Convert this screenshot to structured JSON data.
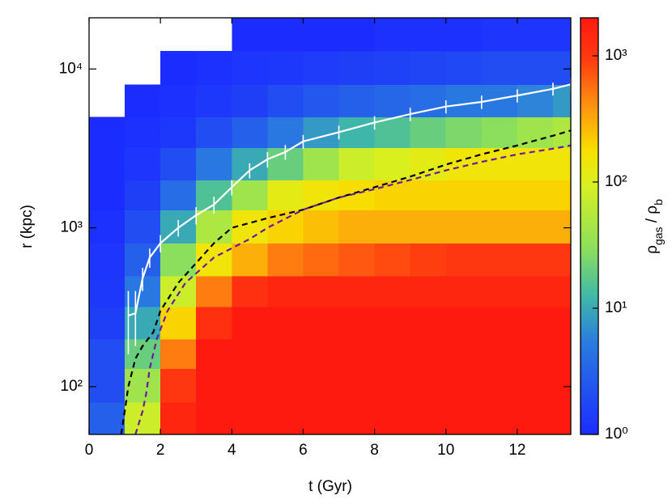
{
  "chart_data": {
    "type": "heatmap",
    "xlabel": "t (Gyr)",
    "ylabel": "r (kpc)",
    "colorbar_label": [
      "ρ",
      "gas",
      " / ρ",
      "b"
    ],
    "xlim": [
      0,
      13.5
    ],
    "ylim": [
      50,
      21000
    ],
    "yscale": "log",
    "xticks": [
      0,
      2,
      4,
      6,
      8,
      10,
      12
    ],
    "yticks": [
      {
        "value": 100,
        "label": "10²"
      },
      {
        "value": 1000,
        "label": "10³"
      },
      {
        "value": 10000,
        "label": "10⁴"
      }
    ],
    "clim": [
      1,
      2000
    ],
    "cticks": [
      {
        "value": 1,
        "label": "10⁰"
      },
      {
        "value": 10,
        "label": "10¹"
      },
      {
        "value": 100,
        "label": "10²"
      },
      {
        "value": 1000,
        "label": "10³"
      }
    ],
    "colormap": [
      [
        0,
        "#1b2cff"
      ],
      [
        0.22,
        "#2a7be0"
      ],
      [
        0.33,
        "#3fb8a8"
      ],
      [
        0.45,
        "#8ee05a"
      ],
      [
        0.6,
        "#d8f020"
      ],
      [
        0.68,
        "#f8e000"
      ],
      [
        0.8,
        "#ff8a10"
      ],
      [
        0.9,
        "#ff3a10"
      ],
      [
        1,
        "#ff1a10"
      ]
    ],
    "t_edges": [
      0,
      1,
      2,
      3,
      4,
      5,
      6,
      7,
      8,
      9,
      10,
      11,
      12,
      13,
      13.5
    ],
    "r_edges": [
      50,
      80,
      130,
      200,
      320,
      500,
      800,
      1300,
      2000,
      3200,
      5000,
      8000,
      13000,
      21000
    ],
    "z": [
      [
        3,
        80,
        1500,
        2000,
        2000,
        2000,
        2000,
        2000,
        2000,
        2000,
        2000,
        2000,
        2000,
        2000
      ],
      [
        2,
        40,
        1000,
        2000,
        2000,
        2000,
        2000,
        2000,
        2000,
        2000,
        2000,
        2000,
        2000,
        2000
      ],
      [
        2,
        20,
        500,
        2000,
        2000,
        2000,
        2000,
        2000,
        2000,
        2000,
        2000,
        2000,
        2000,
        2000
      ],
      [
        1.5,
        10,
        200,
        1200,
        2000,
        2000,
        2000,
        2000,
        2000,
        2000,
        2000,
        2000,
        2000,
        2000
      ],
      [
        1.3,
        5,
        80,
        500,
        1200,
        1500,
        1500,
        1500,
        1500,
        1500,
        1500,
        1500,
        1500,
        1500
      ],
      [
        1.2,
        3,
        30,
        150,
        300,
        500,
        600,
        700,
        800,
        900,
        1000,
        1000,
        1000,
        1000
      ],
      [
        1.1,
        2,
        10,
        50,
        150,
        200,
        250,
        300,
        300,
        300,
        300,
        300,
        300,
        300
      ],
      [
        1,
        1.5,
        4,
        15,
        40,
        120,
        150,
        180,
        200,
        200,
        200,
        200,
        200,
        200
      ],
      [
        1,
        1.2,
        2,
        5,
        10,
        20,
        40,
        80,
        100,
        120,
        150,
        150,
        150,
        150
      ],
      [
        1,
        1.1,
        1.3,
        2,
        3,
        5,
        8,
        12,
        15,
        20,
        25,
        30,
        40,
        50
      ],
      [
        null,
        1,
        1.1,
        1.3,
        1.5,
        2,
        2.5,
        3,
        3.5,
        4,
        5,
        5,
        6,
        8
      ],
      [
        null,
        null,
        1,
        1.1,
        1.2,
        1.3,
        1.4,
        1.5,
        1.6,
        1.7,
        1.8,
        2,
        2,
        2
      ],
      [
        null,
        null,
        null,
        null,
        1,
        1,
        1,
        1,
        1.1,
        1.1,
        1.1,
        1.2,
        1.2,
        1.2
      ]
    ],
    "series": [
      {
        "color": "#ffffff",
        "style": "solid",
        "x": [
          1.1,
          1.3,
          1.5,
          1.7,
          2,
          2.5,
          3,
          3.5,
          4,
          4.5,
          5,
          5.5,
          6,
          7,
          8,
          9,
          10,
          11,
          12,
          13,
          13.5
        ],
        "values": [
          280,
          290,
          480,
          650,
          800,
          1000,
          1200,
          1400,
          1800,
          2300,
          2700,
          3000,
          3500,
          4000,
          4600,
          5200,
          5800,
          6200,
          6800,
          7500,
          8000
        ],
        "errors": [
          120,
          110,
          80,
          90,
          100,
          120,
          150,
          170,
          200,
          250,
          300,
          320,
          350,
          400,
          450,
          500,
          550,
          600,
          650,
          700,
          750
        ]
      },
      {
        "color": "#000000",
        "style": "dashed",
        "x": [
          0.9,
          1,
          1.1,
          1.3,
          1.5,
          1.8,
          2,
          2.5,
          3,
          3.5,
          4,
          5,
          6,
          7,
          8,
          9,
          10,
          11,
          12,
          13,
          13.5
        ],
        "values": [
          50,
          70,
          100,
          150,
          180,
          220,
          300,
          450,
          600,
          800,
          1000,
          1150,
          1300,
          1550,
          1800,
          2100,
          2500,
          2900,
          3300,
          3800,
          4100
        ]
      },
      {
        "color": "#6a1b9a",
        "style": "dashed",
        "x": [
          1.3,
          1.5,
          1.6,
          1.7,
          1.9,
          2.2,
          2.7,
          3.5,
          4.5,
          5,
          6,
          7,
          8,
          9,
          10,
          11,
          12,
          13,
          13.5
        ],
        "values": [
          50,
          70,
          90,
          130,
          200,
          300,
          450,
          650,
          850,
          1000,
          1300,
          1550,
          1750,
          2000,
          2300,
          2600,
          2900,
          3150,
          3300
        ]
      }
    ]
  }
}
